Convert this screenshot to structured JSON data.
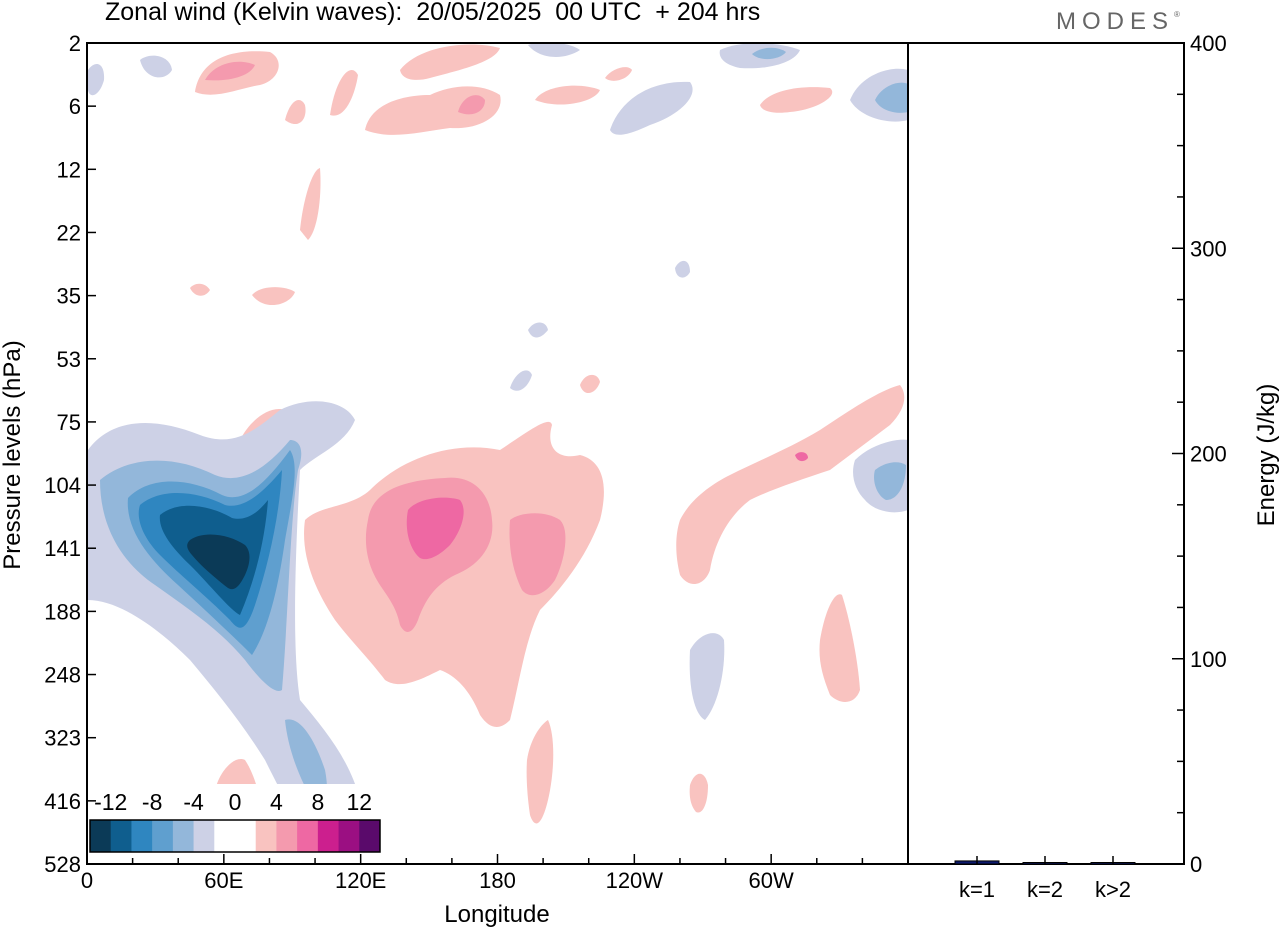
{
  "title": "Zonal wind (Kelvin waves):  20/05/2025  00 UTC  + 204 hrs",
  "logo": "MODES",
  "logo_mark": "®",
  "chart_data": [
    {
      "type": "heatmap",
      "title": "Zonal wind (Kelvin waves):  20/05/2025  00 UTC  + 204 hrs",
      "xlabel": "Longitude",
      "ylabel": "Pressure levels (hPa)",
      "x_ticks": [
        "0",
        "60E",
        "120E",
        "180",
        "120W",
        "60W"
      ],
      "y_ticks": [
        "2",
        "6",
        "12",
        "22",
        "35",
        "53",
        "75",
        "104",
        "141",
        "188",
        "248",
        "323",
        "416",
        "528"
      ],
      "colorbar": {
        "labels": [
          "-12",
          "-8",
          "-4",
          "0",
          "4",
          "8",
          "12"
        ],
        "levels": [
          -14,
          -12,
          -10,
          -8,
          -6,
          -4,
          -2,
          0,
          2,
          4,
          6,
          8,
          10,
          12,
          14
        ],
        "colors": [
          "#0b3a57",
          "#0f5e8e",
          "#2f86c0",
          "#5f9fcf",
          "#93b7da",
          "#cdd1e6",
          "#ffffff",
          "#ffffff",
          "#f9c3c0",
          "#f49aae",
          "#ee68a3",
          "#cc1f8e",
          "#9b0f82",
          "#5a0a6b"
        ]
      },
      "features": [
        {
          "sign": "negative",
          "peak": -13,
          "lon": 50,
          "level": 141
        },
        {
          "sign": "positive",
          "peak": 8,
          "lon": 150,
          "level": 125
        },
        {
          "sign": "positive",
          "peak": 6,
          "lon": 190,
          "level": 141
        },
        {
          "sign": "positive",
          "peak": 4,
          "lon": 320,
          "level": 228
        },
        {
          "sign": "negative",
          "peak": -8,
          "lon": 355,
          "level": 110
        }
      ]
    },
    {
      "type": "bar",
      "ylabel": "Energy (J/kg)",
      "categories": [
        "k=1",
        "k=2",
        "k>2"
      ],
      "values": [
        1.5,
        0.5,
        0.5
      ],
      "ylim": [
        0,
        400
      ],
      "y_ticks": [
        "0",
        "100",
        "200",
        "300",
        "400"
      ],
      "bar_color": "#0d1a6e"
    }
  ]
}
